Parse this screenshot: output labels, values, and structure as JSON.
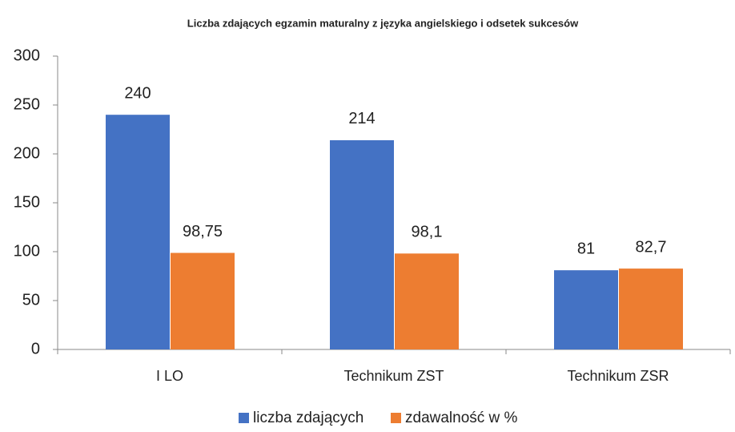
{
  "chart_data": {
    "type": "bar",
    "title": "Liczba zdających egzamin maturalny z języka angielskiego i odsetek sukcesów",
    "categories": [
      "I LO",
      "Technikum ZST",
      "Technikum ZSR"
    ],
    "series": [
      {
        "name": "liczba zdających",
        "color": "#4472c4",
        "values": [
          240,
          214,
          81
        ]
      },
      {
        "name": "zdawalność w %",
        "color": "#ed7d31",
        "values": [
          98.75,
          98.1,
          82.7
        ],
        "value_labels": [
          "98,75",
          "98,1",
          "82,7"
        ]
      }
    ],
    "ylim": [
      0,
      300
    ],
    "yticks": [
      0,
      50,
      100,
      150,
      200,
      250,
      300
    ],
    "grid": false,
    "legend": "bottom"
  }
}
